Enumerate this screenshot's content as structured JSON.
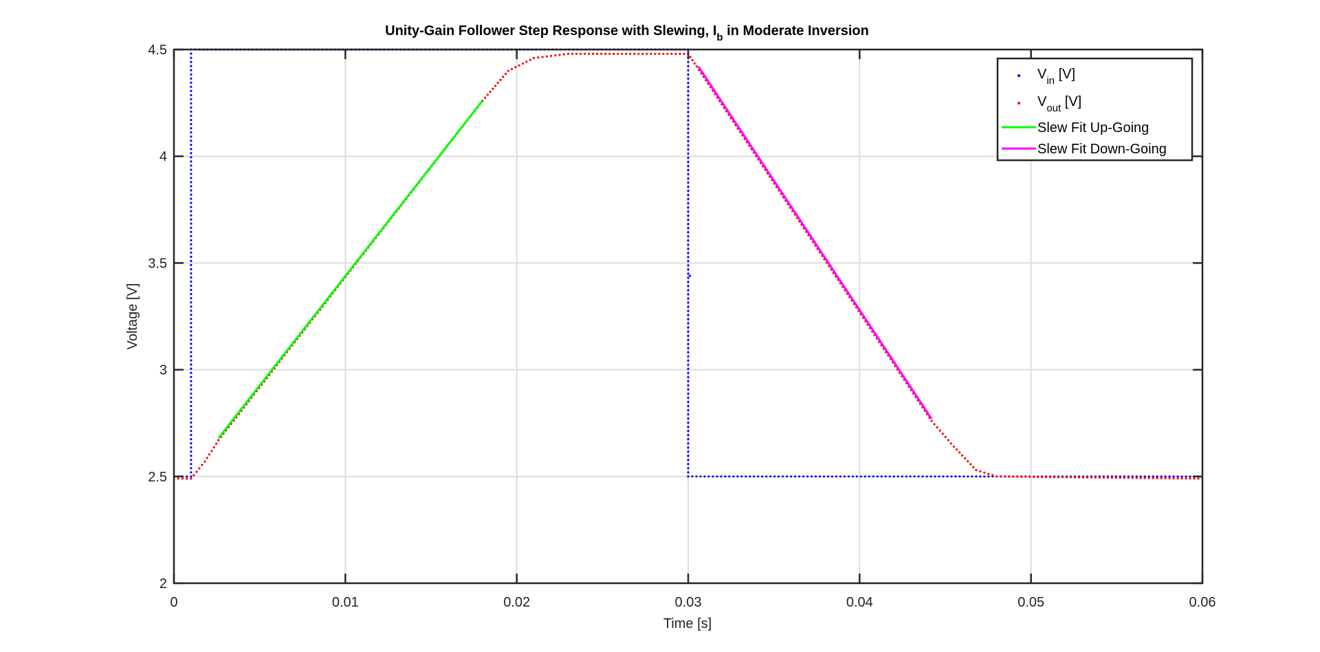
{
  "chart_data": {
    "type": "scatter",
    "title": {
      "main": "Unity-Gain Follower Step Response with Slewing, I",
      "sub": "b",
      "rest": " in Moderate Inversion"
    },
    "xlabel": "Time [s]",
    "ylabel": "Voltage [V]",
    "xlim": [
      0,
      0.06
    ],
    "ylim": [
      2,
      4.5
    ],
    "xticks": [
      0,
      0.01,
      0.02,
      0.03,
      0.04,
      0.05,
      0.06
    ],
    "xtick_labels": [
      "0",
      "0.01",
      "0.02",
      "0.03",
      "0.04",
      "0.05",
      "0.06"
    ],
    "yticks": [
      2,
      2.5,
      3,
      3.5,
      4,
      4.5
    ],
    "ytick_labels": [
      "2",
      "2.5",
      "3",
      "3.5",
      "4",
      "4.5"
    ],
    "grid": true,
    "legend_position": "top-right",
    "colors": {
      "vin": "#0000ff",
      "vout": "#ff0000",
      "fit_up": "#00ff00",
      "fit_down": "#ff00ff",
      "grid": "#dcdcdc",
      "frame": "#262626"
    },
    "legend": [
      {
        "base": "V",
        "sub": "in",
        "rest": " [V]",
        "marker": "dot",
        "color": "#0000ff"
      },
      {
        "base": "V",
        "sub": "out",
        "rest": " [V]",
        "marker": "dot",
        "color": "#ff0000"
      },
      {
        "base": "Slew Fit Up-Going",
        "sub": "",
        "rest": "",
        "marker": "line",
        "color": "#00ff00"
      },
      {
        "base": "Slew Fit Down-Going",
        "sub": "",
        "rest": "",
        "marker": "line",
        "color": "#ff00ff"
      }
    ],
    "series": [
      {
        "name": "Vin [V]",
        "style": "dots",
        "points": [
          [
            0,
            2.5
          ],
          [
            0.001,
            2.5
          ],
          [
            0.001,
            4.5
          ],
          [
            0.03,
            4.5
          ],
          [
            0.03,
            4.09
          ],
          [
            0.03,
            2.5
          ],
          [
            0.06,
            2.5
          ]
        ],
        "isolated_points": [
          [
            0.0301,
            3.44
          ]
        ]
      },
      {
        "name": "Vout [V]",
        "style": "dots",
        "points": [
          [
            0,
            2.49
          ],
          [
            0.001,
            2.49
          ],
          [
            0.0018,
            2.57
          ],
          [
            0.0026,
            2.67
          ],
          [
            0.018,
            4.26
          ],
          [
            0.0195,
            4.4
          ],
          [
            0.021,
            4.46
          ],
          [
            0.023,
            4.48
          ],
          [
            0.03,
            4.48
          ],
          [
            0.0305,
            4.42
          ],
          [
            0.0442,
            2.76
          ],
          [
            0.0455,
            2.64
          ],
          [
            0.0468,
            2.53
          ],
          [
            0.048,
            2.5
          ],
          [
            0.06,
            2.49
          ]
        ]
      },
      {
        "name": "Slew Fit Up-Going",
        "style": "line",
        "points": [
          [
            0.0026,
            2.68
          ],
          [
            0.018,
            4.26
          ]
        ]
      },
      {
        "name": "Slew Fit Down-Going",
        "style": "line",
        "points": [
          [
            0.0306,
            4.42
          ],
          [
            0.0442,
            2.77
          ]
        ]
      }
    ]
  }
}
